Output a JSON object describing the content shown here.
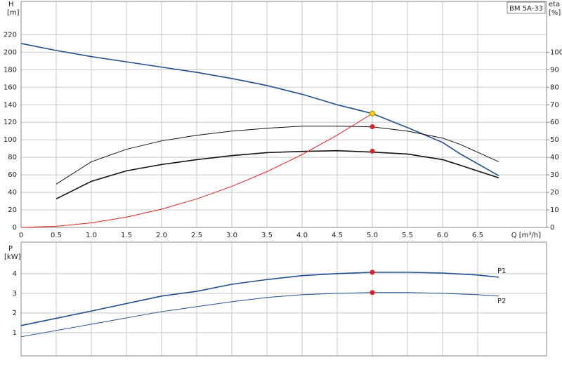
{
  "chart_data": [
    {
      "type": "line",
      "title": "BM 5A-33",
      "ylabel": "H",
      "yunit": "[m]",
      "y2label": "eta",
      "y2unit": "[%]",
      "xlabel": "Q [m³/h]",
      "xlim": [
        0,
        7.48
      ],
      "xticks": [
        0,
        0.5,
        {
          "value": 1,
          "label": "1.0"
        },
        1.5,
        {
          "value": 2,
          "label": "2.0"
        },
        2.5,
        {
          "value": 3,
          "label": "3.0"
        },
        3.5,
        {
          "value": 4,
          "label": "4.0"
        },
        4.5,
        {
          "value": 5,
          "label": "5.0"
        },
        5.5,
        {
          "value": 6,
          "label": "6.0"
        },
        6.5
      ],
      "ylim": [
        0,
        258
      ],
      "yticks": [
        0,
        20,
        40,
        60,
        80,
        100,
        120,
        140,
        160,
        180,
        200,
        220
      ],
      "y2lim": [
        0,
        129
      ],
      "y2ticks": [
        0,
        10,
        20,
        30,
        40,
        50,
        60,
        70,
        80,
        90,
        100
      ],
      "grid": true,
      "series": [
        {
          "color": "#1f4e8c",
          "width": 1.6,
          "x": [
            0,
            0.5,
            1,
            1.5,
            2,
            2.5,
            3,
            3.5,
            4,
            4.5,
            5,
            5.5,
            6,
            6.25,
            6.8
          ],
          "values": [
            210,
            202,
            195,
            189,
            183,
            177,
            170,
            162,
            152,
            140,
            130,
            114,
            97,
            84,
            59
          ]
        },
        {
          "color": "#111111",
          "width": 1,
          "axis": "y2",
          "x": [
            0.5,
            1,
            1.5,
            2,
            2.5,
            3,
            3.5,
            4,
            4.5,
            5,
            5.5,
            6,
            6.25,
            6.8
          ],
          "values": [
            24.7,
            37.5,
            44.6,
            49.4,
            52.6,
            55,
            56.6,
            57.8,
            57.8,
            57.4,
            55,
            51,
            47.4,
            37.5
          ]
        },
        {
          "color": "#111111",
          "width": 1.6,
          "axis": "y2",
          "x": [
            0.5,
            1,
            1.5,
            2,
            2.5,
            3,
            3.5,
            4,
            4.5,
            5,
            5.5,
            6,
            6.25,
            6.8
          ],
          "values": [
            16.3,
            26.3,
            32.3,
            35.9,
            38.7,
            41,
            42.7,
            43.4,
            43.8,
            43,
            41.9,
            38.7,
            35.5,
            28.3
          ]
        },
        {
          "color": "#e02020",
          "width": 1,
          "x": [
            0,
            0.5,
            1,
            1.5,
            2,
            2.5,
            3,
            3.5,
            4,
            4.5,
            5
          ],
          "values": [
            0,
            1.3,
            5.2,
            11.7,
            20.8,
            32.5,
            46.8,
            63.7,
            83.2,
            105.3,
            130
          ]
        }
      ],
      "points": [
        {
          "x": 5,
          "y": 130,
          "color": "#ffd700"
        },
        {
          "x": 5,
          "y": 57.5,
          "axis": "y2",
          "color": "#e02020"
        },
        {
          "x": 5,
          "y": 43.5,
          "axis": "y2",
          "color": "#e02020"
        }
      ]
    },
    {
      "type": "line",
      "ylabel": "P",
      "yunit": "[kW]",
      "xlim": [
        0,
        7.48
      ],
      "ylim": [
        -0.18,
        5.6
      ],
      "yticks": [
        1,
        2,
        3,
        4
      ],
      "grid": true,
      "series": [
        {
          "name": "P1",
          "color": "#1f4e8c",
          "width": 1.6,
          "x": [
            0,
            1,
            2,
            2.5,
            3,
            3.5,
            4,
            4.5,
            5,
            5.5,
            6,
            6.5,
            6.8
          ],
          "values": [
            1.36,
            2.1,
            2.86,
            3.1,
            3.46,
            3.7,
            3.9,
            4.0,
            4.07,
            4.07,
            4.03,
            3.93,
            3.82
          ]
        },
        {
          "name": "P2",
          "color": "#1f4e8c",
          "width": 1,
          "x": [
            0,
            1,
            2,
            2.5,
            3,
            3.5,
            4,
            4.5,
            5,
            5.5,
            6,
            6.5,
            6.8
          ],
          "values": [
            0.79,
            1.43,
            2.07,
            2.32,
            2.57,
            2.79,
            2.93,
            3.0,
            3.04,
            3.04,
            3.0,
            2.93,
            2.86
          ]
        }
      ],
      "points": [
        {
          "x": 5,
          "y": 4.07,
          "color": "#e02020"
        },
        {
          "x": 5,
          "y": 3.04,
          "color": "#e02020"
        }
      ]
    }
  ]
}
